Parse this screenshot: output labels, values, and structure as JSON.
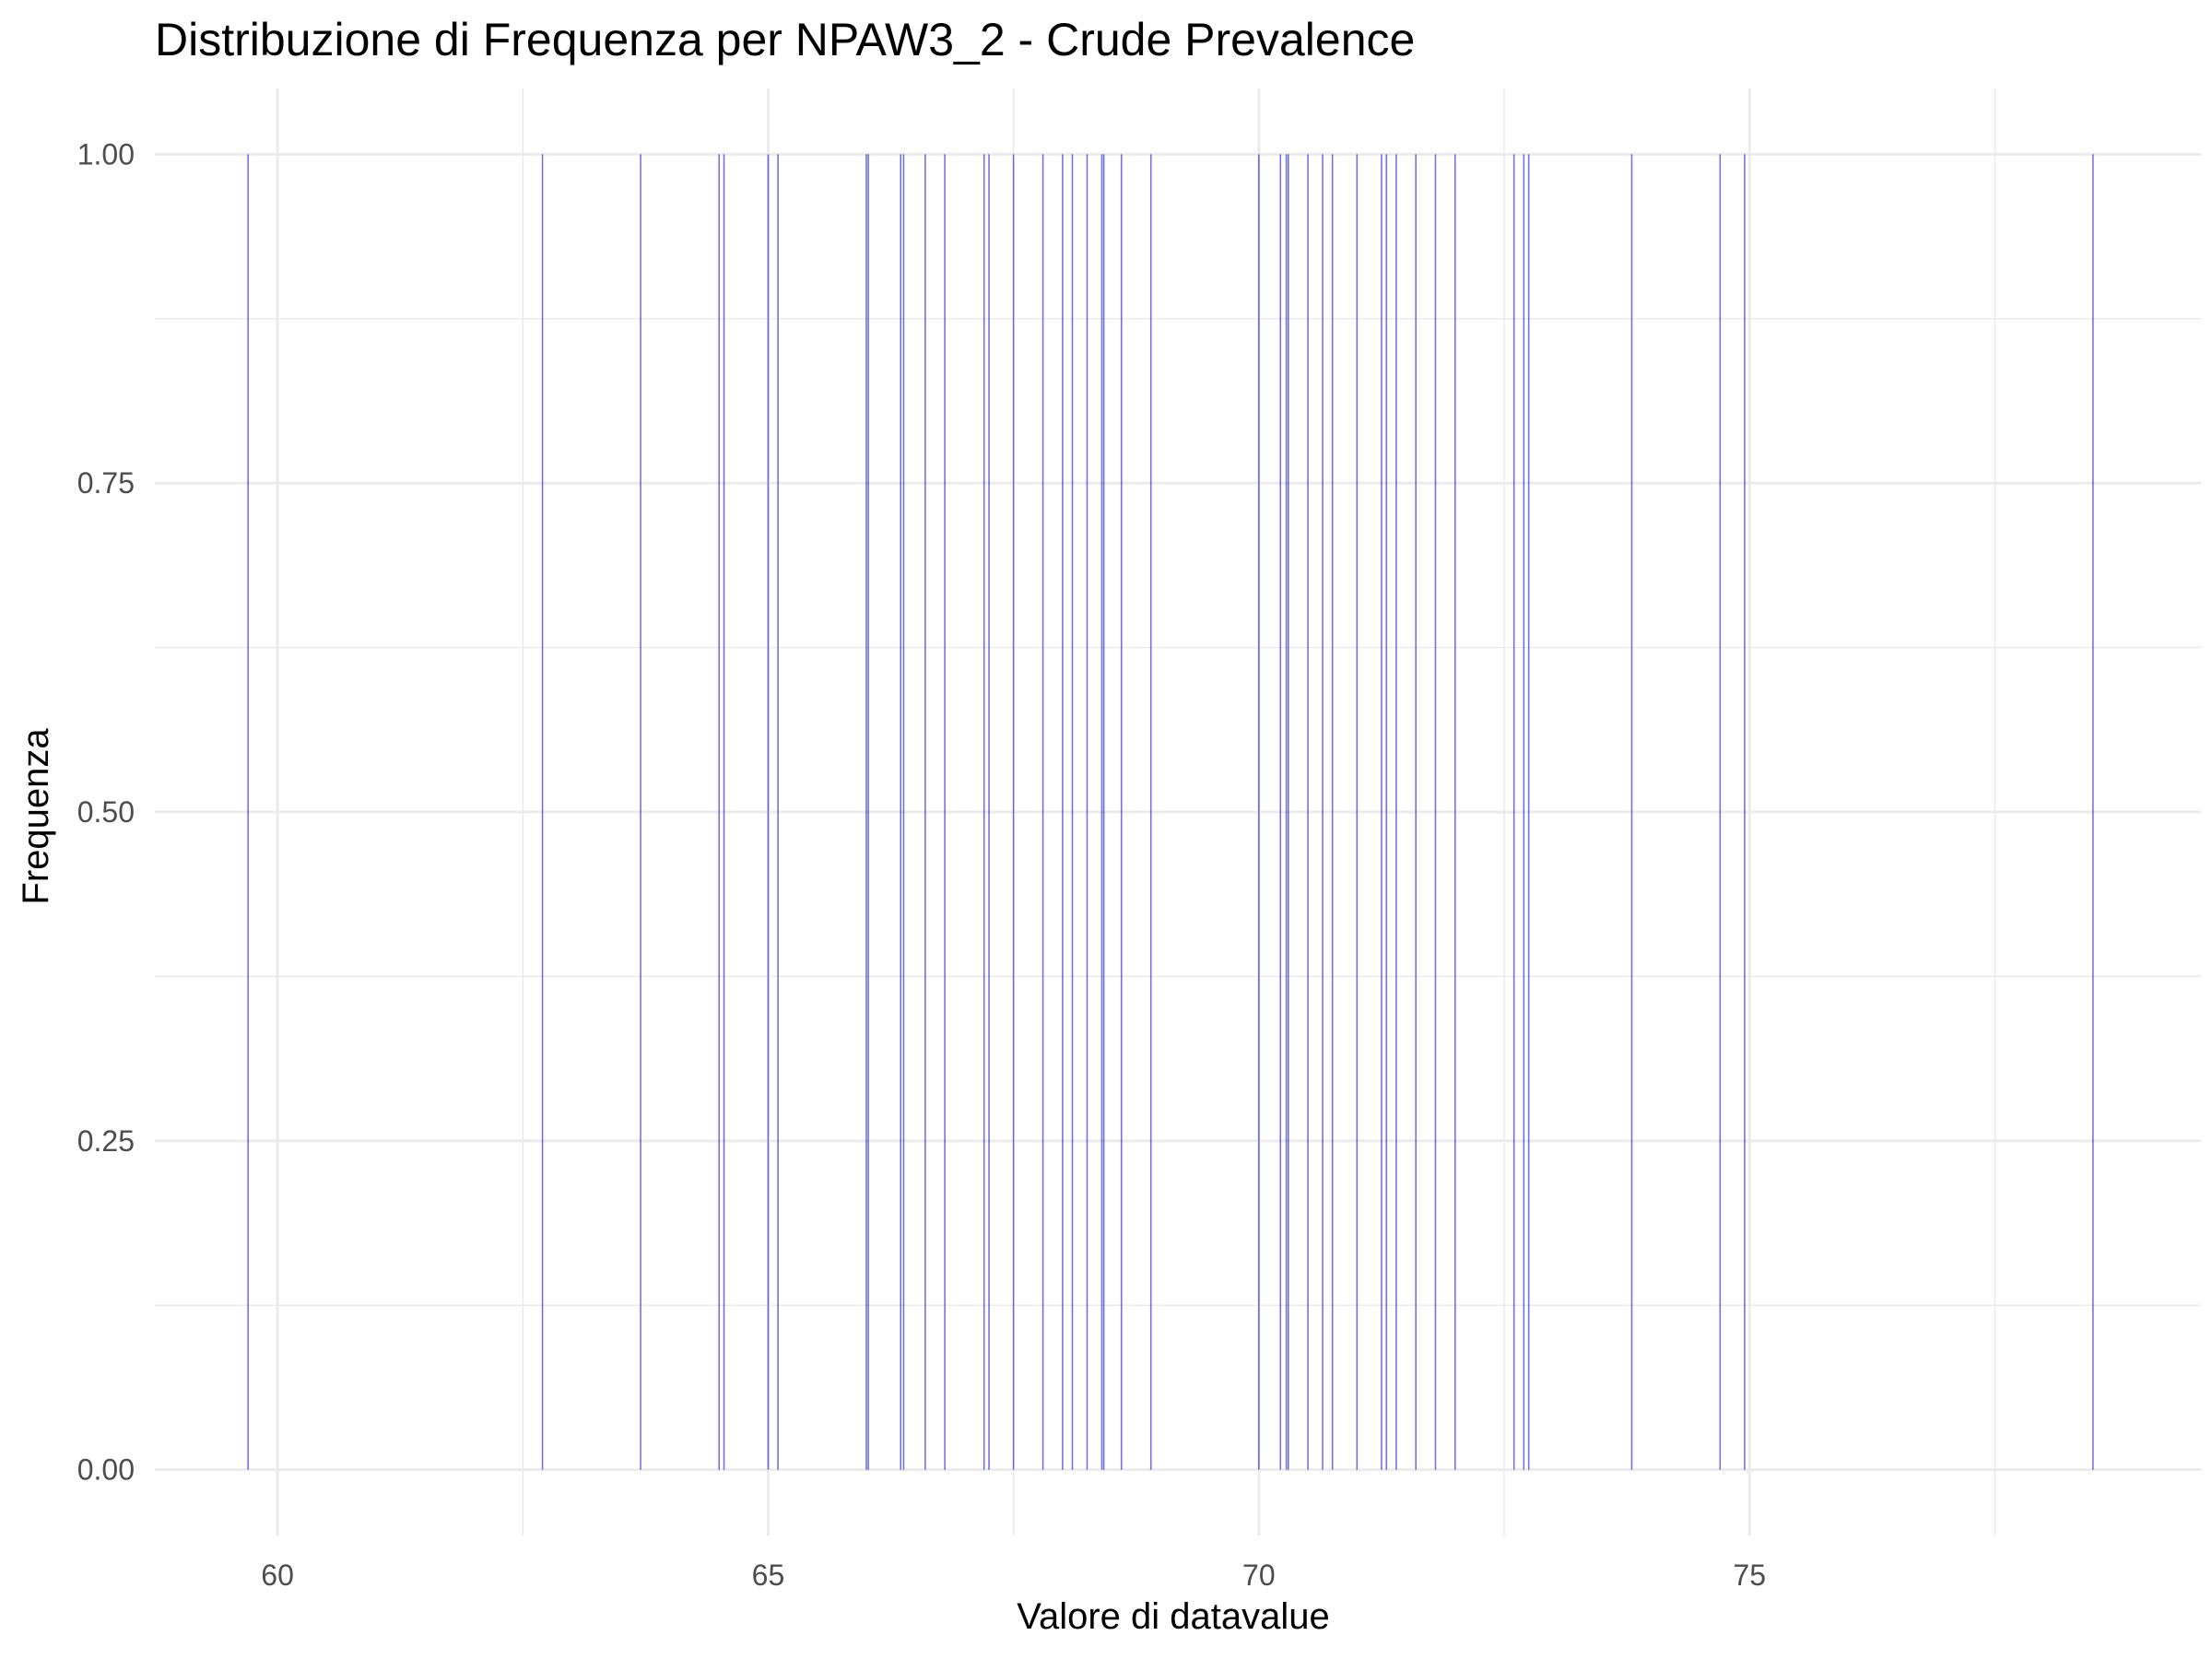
{
  "chart_data": {
    "type": "bar",
    "title": "Distribuzione di Frequenza per NPAW3_2 - Crude Prevalence",
    "xlabel": "Valore di datavalue",
    "ylabel": "Frequenza",
    "xlim": [
      58.75,
      79.6
    ],
    "ylim": [
      -0.05,
      1.05
    ],
    "x_ticks": [
      60,
      65,
      70,
      75
    ],
    "x_minor_ticks": [
      62.5,
      67.5,
      72.5,
      77.5
    ],
    "y_ticks": [
      0,
      0.25,
      0.5,
      0.75,
      1
    ],
    "y_tick_labels": [
      "0.00",
      "0.25",
      "0.50",
      "0.75",
      "1.00"
    ],
    "y_minor_ticks": [
      0.125,
      0.375,
      0.625,
      0.875
    ],
    "grid": true,
    "bar_color": "#0000cd",
    "grid_color": "#ebebeb",
    "x": [
      59.7,
      62.7,
      63.7,
      64.5,
      64.55,
      65.0,
      65.1,
      66.0,
      66.02,
      66.35,
      66.38,
      66.6,
      66.8,
      67.2,
      67.25,
      67.5,
      67.8,
      68.0,
      68.1,
      68.25,
      68.4,
      68.42,
      68.6,
      68.9,
      70.0,
      70.22,
      70.28,
      70.3,
      70.5,
      70.65,
      70.75,
      71.0,
      71.25,
      71.3,
      71.4,
      71.6,
      71.8,
      72.0,
      72.6,
      72.7,
      72.75,
      73.8,
      74.7,
      74.95,
      78.5
    ],
    "values": [
      1,
      1,
      1,
      1,
      1,
      1,
      1,
      1,
      1,
      1,
      1,
      1,
      1,
      1,
      1,
      1,
      1,
      1,
      1,
      1,
      1,
      1,
      1,
      1,
      1,
      1,
      1,
      1,
      1,
      1,
      1,
      1,
      1,
      1,
      1,
      1,
      1,
      1,
      1,
      1,
      1,
      1,
      1,
      1,
      1
    ]
  }
}
